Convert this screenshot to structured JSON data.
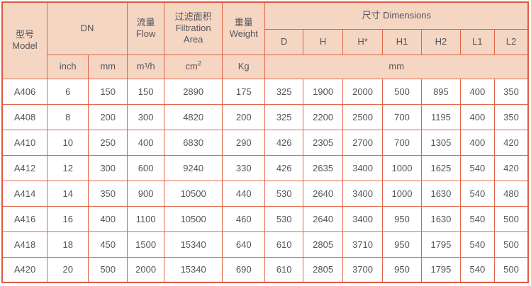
{
  "header": {
    "model": {
      "zh": "型号",
      "en": "Model"
    },
    "dn": "DN",
    "flow": {
      "zh": "流量",
      "en": "Flow"
    },
    "filtration": {
      "zh": "过滤面积",
      "en1": "Filtration",
      "en2": "Area"
    },
    "weight": {
      "zh": "重量",
      "en": "Weight"
    },
    "dimensions": "尺寸 Dimensions",
    "dim_cols": [
      "D",
      "H",
      "H*",
      "H1",
      "H2",
      "L1",
      "L2"
    ],
    "units": {
      "inch": "inch",
      "mm": "mm",
      "flow": "m³/h",
      "area_base": "cm",
      "area_sup": "2",
      "weight": "Kg",
      "dim_mm": "mm"
    }
  },
  "rows": [
    [
      "A406",
      "6",
      "150",
      "150",
      "2890",
      "175",
      "325",
      "1900",
      "2000",
      "500",
      "895",
      "400",
      "350"
    ],
    [
      "A408",
      "8",
      "200",
      "300",
      "4820",
      "200",
      "325",
      "2200",
      "2500",
      "700",
      "1195",
      "400",
      "350"
    ],
    [
      "A410",
      "10",
      "250",
      "400",
      "6830",
      "290",
      "426",
      "2305",
      "2700",
      "700",
      "1305",
      "400",
      "420"
    ],
    [
      "A412",
      "12",
      "300",
      "600",
      "9240",
      "330",
      "426",
      "2635",
      "3400",
      "1000",
      "1625",
      "540",
      "420"
    ],
    [
      "A414",
      "14",
      "350",
      "900",
      "10500",
      "440",
      "530",
      "2640",
      "3400",
      "1000",
      "1630",
      "540",
      "480"
    ],
    [
      "A416",
      "16",
      "400",
      "1100",
      "10500",
      "460",
      "530",
      "2640",
      "3400",
      "950",
      "1630",
      "540",
      "500"
    ],
    [
      "A418",
      "18",
      "450",
      "1500",
      "15340",
      "640",
      "610",
      "2805",
      "3710",
      "950",
      "1795",
      "540",
      "500"
    ],
    [
      "A420",
      "20",
      "500",
      "2000",
      "15340",
      "690",
      "610",
      "2805",
      "3700",
      "950",
      "1795",
      "540",
      "500"
    ]
  ],
  "colors": {
    "header_bg": "#f5d6c3",
    "border": "#e06549",
    "border_outer": "#dd5a3e",
    "text": "#54555a"
  }
}
